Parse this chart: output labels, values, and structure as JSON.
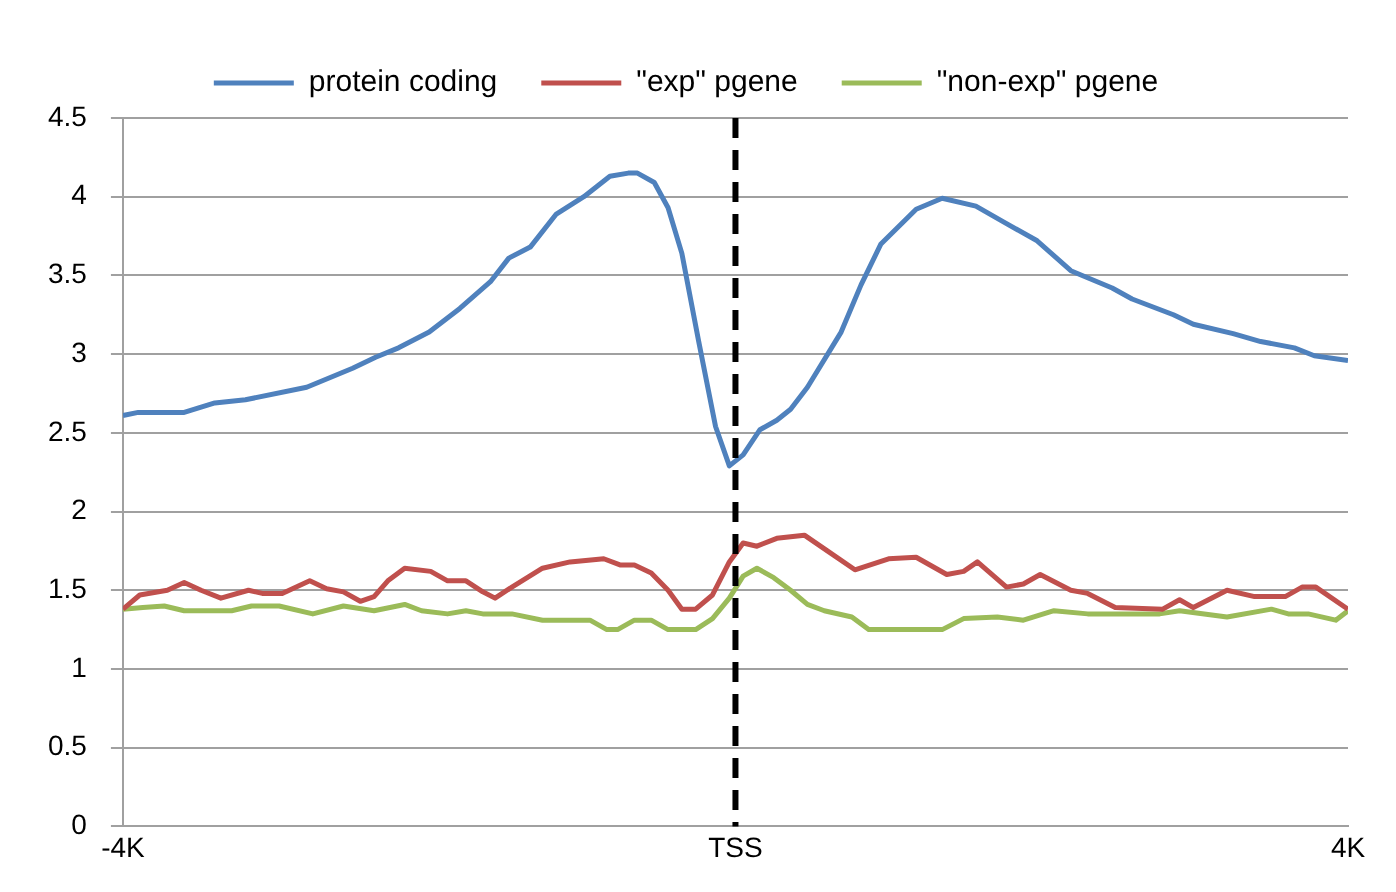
{
  "chart_data": {
    "type": "line",
    "x": [
      -4000,
      -3900,
      -3600,
      -3400,
      -3200,
      -2800,
      -2500,
      -2350,
      -2200,
      -2000,
      -1800,
      -1600,
      -1480,
      -1340,
      -1170,
      -990,
      -820,
      -700,
      -640,
      -530,
      -440,
      -350,
      -240,
      -130,
      -40,
      50,
      160,
      270,
      360,
      470,
      690,
      820,
      950,
      1180,
      1350,
      1570,
      1750,
      1970,
      2190,
      2460,
      2590,
      2860,
      2990,
      3250,
      3430,
      3650,
      3780,
      4000
    ],
    "series": [
      {
        "name": "protein coding",
        "color": "#4f81bd",
        "values": [
          2.61,
          2.63,
          2.63,
          2.69,
          2.71,
          2.79,
          2.91,
          2.98,
          3.04,
          3.14,
          3.29,
          3.46,
          3.61,
          3.68,
          3.89,
          4.0,
          4.13,
          4.15,
          4.15,
          4.09,
          3.93,
          3.64,
          3.08,
          2.54,
          2.29,
          2.36,
          2.52,
          2.58,
          2.65,
          2.79,
          3.14,
          3.44,
          3.7,
          3.92,
          3.99,
          3.94,
          3.84,
          3.72,
          3.53,
          3.42,
          3.35,
          3.25,
          3.19,
          3.13,
          3.08,
          3.04,
          2.99,
          2.96
        ]
      },
      {
        "name": "\"exp\" pgene",
        "color": "#c0504d",
        "x": [
          -4000,
          -3890,
          -3710,
          -3600,
          -3490,
          -3360,
          -3180,
          -3090,
          -2960,
          -2780,
          -2670,
          -2560,
          -2450,
          -2360,
          -2270,
          -2160,
          -1990,
          -1880,
          -1760,
          -1650,
          -1570,
          -1460,
          -1260,
          -1080,
          -860,
          -750,
          -660,
          -550,
          -440,
          -350,
          -260,
          -150,
          -40,
          50,
          140,
          270,
          450,
          600,
          780,
          1000,
          1180,
          1380,
          1490,
          1580,
          1770,
          1880,
          1990,
          2190,
          2300,
          2480,
          2790,
          2900,
          2990,
          3210,
          3390,
          3590,
          3700,
          3790,
          4000
        ],
        "values": [
          1.38,
          1.47,
          1.5,
          1.55,
          1.5,
          1.45,
          1.5,
          1.48,
          1.48,
          1.56,
          1.51,
          1.49,
          1.43,
          1.46,
          1.56,
          1.64,
          1.62,
          1.56,
          1.56,
          1.49,
          1.45,
          1.52,
          1.64,
          1.68,
          1.7,
          1.66,
          1.66,
          1.61,
          1.5,
          1.38,
          1.38,
          1.47,
          1.68,
          1.8,
          1.78,
          1.83,
          1.85,
          1.75,
          1.63,
          1.7,
          1.71,
          1.6,
          1.62,
          1.68,
          1.52,
          1.54,
          1.6,
          1.5,
          1.48,
          1.39,
          1.38,
          1.44,
          1.39,
          1.5,
          1.46,
          1.46,
          1.52,
          1.52,
          1.38
        ]
      },
      {
        "name": "\"non-exp\" pgene",
        "color": "#9bbb59",
        "x": [
          -4000,
          -3870,
          -3730,
          -3600,
          -3290,
          -3160,
          -2980,
          -2760,
          -2560,
          -2360,
          -2160,
          -2050,
          -1880,
          -1760,
          -1650,
          -1460,
          -1260,
          -950,
          -840,
          -770,
          -660,
          -550,
          -440,
          -260,
          -150,
          -40,
          50,
          140,
          250,
          360,
          470,
          580,
          760,
          870,
          1350,
          1490,
          1710,
          1880,
          2080,
          2300,
          2770,
          2900,
          3210,
          3500,
          3610,
          3740,
          3920,
          4000
        ],
        "values": [
          1.38,
          1.39,
          1.4,
          1.37,
          1.37,
          1.4,
          1.4,
          1.35,
          1.4,
          1.37,
          1.41,
          1.37,
          1.35,
          1.37,
          1.35,
          1.35,
          1.31,
          1.31,
          1.25,
          1.25,
          1.31,
          1.31,
          1.25,
          1.25,
          1.32,
          1.45,
          1.59,
          1.64,
          1.58,
          1.5,
          1.41,
          1.37,
          1.33,
          1.25,
          1.25,
          1.32,
          1.33,
          1.31,
          1.37,
          1.35,
          1.35,
          1.37,
          1.33,
          1.38,
          1.35,
          1.35,
          1.31,
          1.37
        ]
      }
    ],
    "xlim": [
      -4000,
      4000
    ],
    "xticks": [
      {
        "value": -4000,
        "label": "-4K"
      },
      {
        "value": 0,
        "label": "TSS"
      },
      {
        "value": 4000,
        "label": "4K"
      }
    ],
    "ylim": [
      0,
      4.5
    ],
    "yticks": [
      0,
      0.5,
      1,
      1.5,
      2,
      2.5,
      3,
      3.5,
      4,
      4.5
    ],
    "ref_lines": [
      {
        "axis": "x",
        "value": 0,
        "color": "#000000",
        "line_style": "dashed"
      }
    ],
    "grid": "y",
    "legend": "top",
    "marker": "none",
    "line_style": "solid"
  }
}
